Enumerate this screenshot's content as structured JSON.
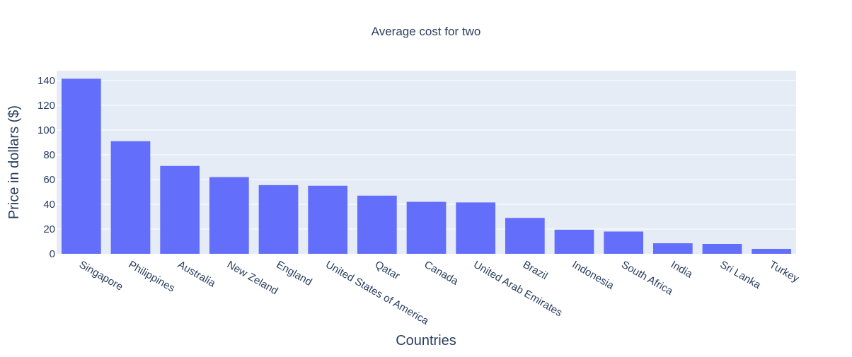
{
  "chart_data": {
    "type": "bar",
    "title": "Average cost for two",
    "xlabel": "Countries",
    "ylabel": "Price in dollars ($)",
    "categories": [
      "Singapore",
      "Philippines",
      "Australia",
      "New Zeland",
      "England",
      "United States of America",
      "Qatar",
      "Canada",
      "United Arab Emirates",
      "Brazil",
      "Indonesia",
      "South Africa",
      "India",
      "Sri Lanka",
      "Turkey"
    ],
    "values": [
      141.5,
      91,
      71,
      62,
      55.5,
      55,
      47,
      42,
      41.5,
      29,
      19.5,
      18,
      8.5,
      8,
      4
    ],
    "ylim": [
      0,
      148
    ],
    "yticks": [
      0,
      20,
      40,
      60,
      80,
      100,
      120,
      140
    ],
    "grid": true,
    "legend": "none",
    "colors": {
      "bar": "#636efa",
      "plot_background": "#e5ecf6",
      "grid": "#ffffff",
      "text": "#2a3f5f"
    }
  }
}
